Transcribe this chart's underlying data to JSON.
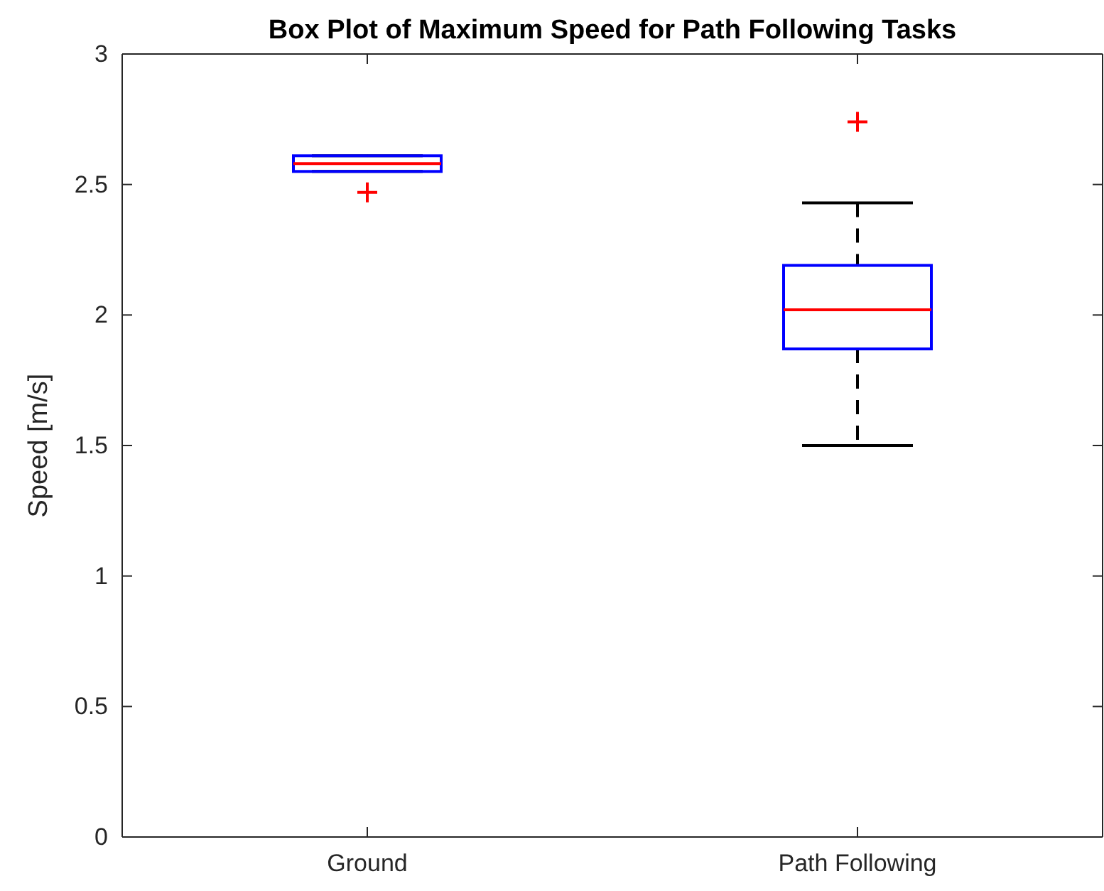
{
  "chart_data": {
    "type": "box",
    "title": "Box Plot of Maximum Speed for Path Following Tasks",
    "ylabel": "Speed [m/s]",
    "categories": [
      "Ground",
      "Path Following"
    ],
    "boxes": [
      {
        "low": 2.55,
        "q1": 2.55,
        "median": 2.58,
        "q3": 2.61,
        "high": 2.61,
        "outliers": [
          2.47
        ]
      },
      {
        "low": 1.5,
        "q1": 1.87,
        "median": 2.02,
        "q3": 2.19,
        "high": 2.43,
        "outliers": [
          2.74
        ]
      }
    ],
    "color": "#0000ff",
    "marker": "cross",
    "ylim": [
      0,
      3
    ],
    "yticks": [
      0,
      0.5,
      1,
      1.5,
      2,
      2.5,
      3
    ],
    "grid": false
  }
}
